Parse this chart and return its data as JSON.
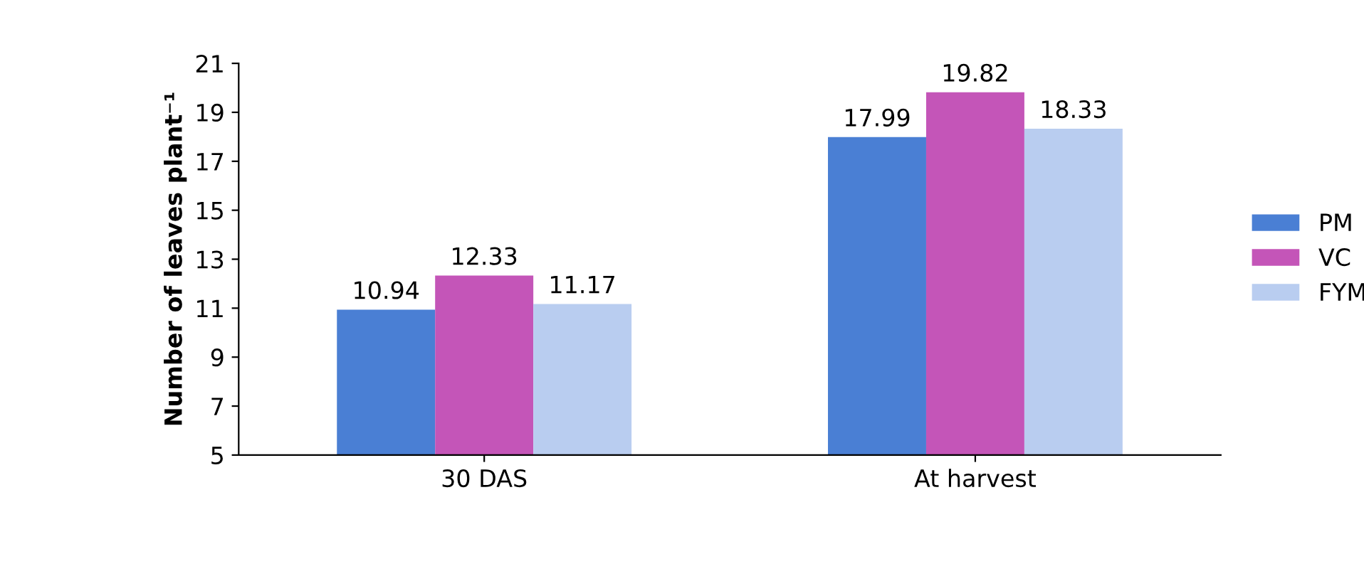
{
  "chart_data": {
    "type": "bar",
    "ylabel": "Number of leaves plant⁻¹",
    "categories": [
      "30 DAS",
      "At harvest"
    ],
    "series": [
      {
        "name": "PM",
        "color": "#4a7fd4",
        "values": [
          10.94,
          17.99
        ]
      },
      {
        "name": "VC",
        "color": "#c455b8",
        "values": [
          12.33,
          19.82
        ]
      },
      {
        "name": "FYM",
        "color": "#b9cdf0",
        "values": [
          11.17,
          18.33
        ]
      }
    ],
    "ylim": [
      5,
      21
    ],
    "yticks": [
      5,
      7,
      9,
      11,
      13,
      15,
      17,
      19,
      21
    ],
    "grid": false,
    "legend": "right",
    "data_labels": true
  }
}
